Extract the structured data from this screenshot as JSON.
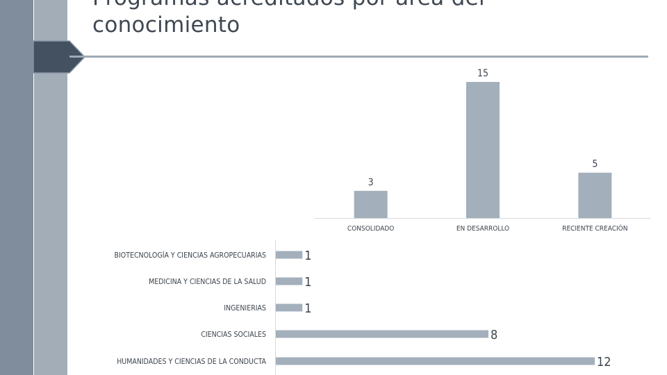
{
  "slide": {
    "title": "Programas acreditados por área del conocimiento"
  },
  "colors": {
    "bar": "#a3afbb",
    "text": "#3b434c",
    "axis": "#d9d9d9",
    "strip_dark": "#7f8d9c",
    "strip_light": "#a2adb8",
    "arrow": "#435160"
  },
  "chart_data": [
    {
      "type": "bar",
      "orientation": "vertical",
      "categories": [
        "CONSOLIDADO",
        "EN DESARROLLO",
        "RECIENTE CREACIÓN"
      ],
      "values": [
        3,
        15,
        5
      ],
      "data_labels": [
        "3",
        "15",
        "5"
      ],
      "title": "",
      "xlabel": "",
      "ylabel": "",
      "ylim": [
        0,
        15
      ],
      "grid": false
    },
    {
      "type": "bar",
      "orientation": "horizontal",
      "categories": [
        "BIOTECNOLOGÍA Y CIENCIAS AGROPECUARIAS",
        "MEDICINA Y CIENCIAS DE LA SALUD",
        "INGENIERIAS",
        "CIENCIAS SOCIALES",
        "HUMANIDADES Y CIENCIAS DE LA CONDUCTA"
      ],
      "values": [
        1,
        1,
        1,
        8,
        12
      ],
      "data_labels": [
        "1",
        "1",
        "1",
        "8",
        "12"
      ],
      "title": "",
      "xlabel": "",
      "ylabel": "",
      "xlim": [
        0,
        12
      ],
      "grid": false
    }
  ]
}
